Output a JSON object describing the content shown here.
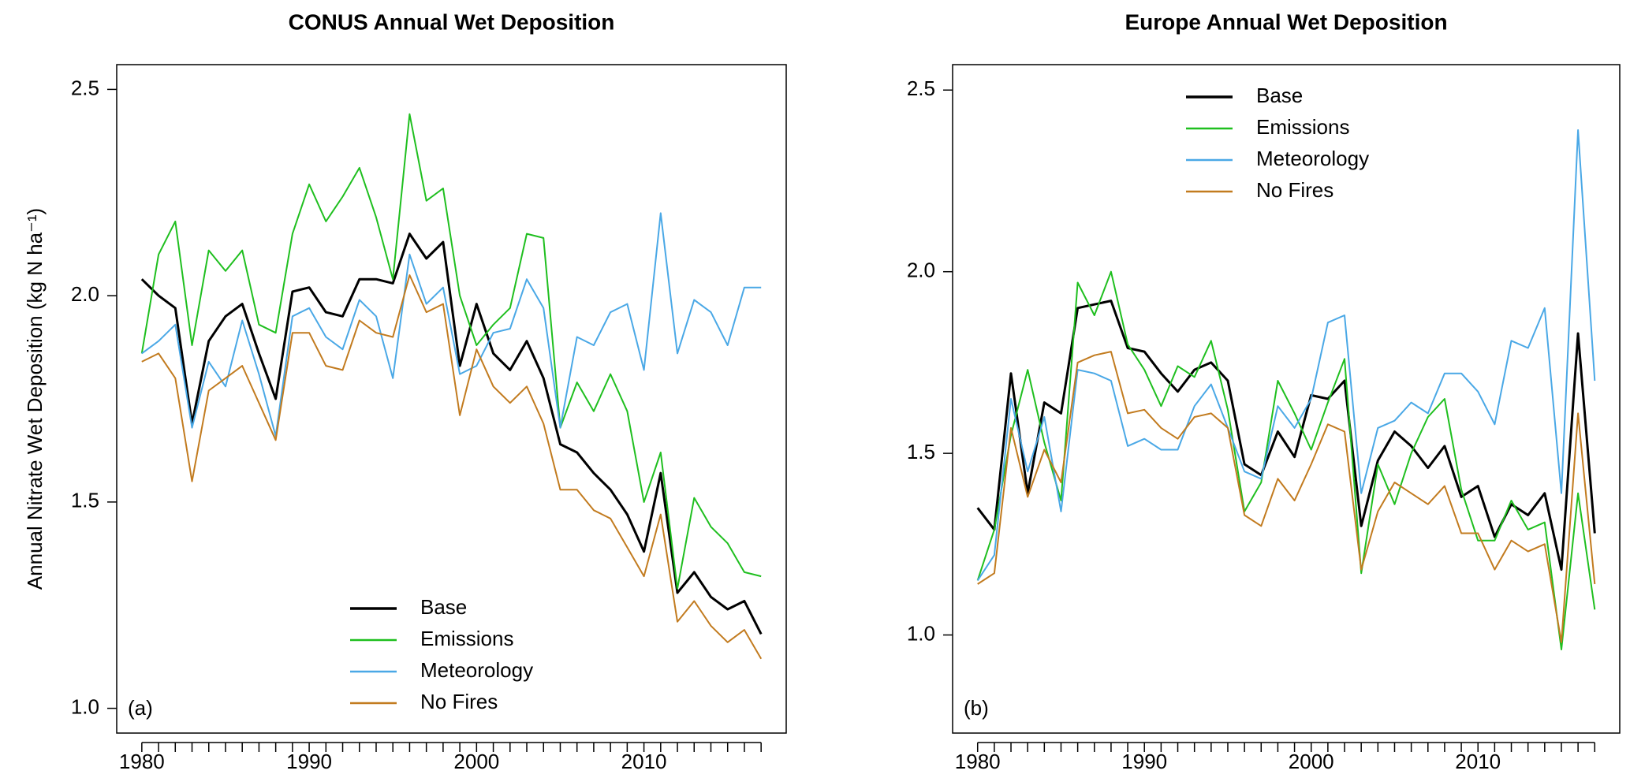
{
  "chart_data": [
    {
      "type": "line",
      "title": "CONUS Annual Wet Deposition",
      "y_label": "Annual Nitrate Wet Deposition (kg N ha⁻¹)",
      "annotation": "(a)",
      "legend": "bottom",
      "x": [
        1980,
        1981,
        1982,
        1983,
        1984,
        1985,
        1986,
        1987,
        1988,
        1989,
        1990,
        1991,
        1992,
        1993,
        1994,
        1995,
        1996,
        1997,
        1998,
        1999,
        2000,
        2001,
        2002,
        2003,
        2004,
        2005,
        2006,
        2007,
        2008,
        2009,
        2010,
        2011,
        2012,
        2013,
        2014,
        2015,
        2016,
        2017
      ],
      "xlim": [
        1978.5,
        2018.5
      ],
      "xticks": [
        1980,
        1990,
        2000,
        2010
      ],
      "ylim": [
        0.94,
        2.56
      ],
      "yticks": [
        {
          "value": 1,
          "label": "1.0"
        },
        1.5,
        {
          "value": 2,
          "label": "2.0"
        },
        2.5
      ],
      "series": [
        {
          "name": "Base",
          "color": "#000000",
          "width": 3,
          "values": [
            2.04,
            2.0,
            1.97,
            1.69,
            1.89,
            1.95,
            1.98,
            1.86,
            1.75,
            2.01,
            2.02,
            1.96,
            1.95,
            2.04,
            2.04,
            2.03,
            2.15,
            2.09,
            2.13,
            1.83,
            1.98,
            1.86,
            1.82,
            1.89,
            1.8,
            1.64,
            1.62,
            1.57,
            1.53,
            1.47,
            1.38,
            1.57,
            1.28,
            1.33,
            1.27,
            1.24,
            1.26,
            1.18
          ]
        },
        {
          "name": "Emissions",
          "color": "#1fbf1f",
          "width": 2,
          "values": [
            1.86,
            2.1,
            2.18,
            1.88,
            2.11,
            2.06,
            2.11,
            1.93,
            1.91,
            2.15,
            2.27,
            2.18,
            2.24,
            2.31,
            2.19,
            2.04,
            2.44,
            2.23,
            2.26,
            2.0,
            1.88,
            1.93,
            1.97,
            2.15,
            2.14,
            1.68,
            1.79,
            1.72,
            1.81,
            1.72,
            1.5,
            1.62,
            1.29,
            1.51,
            1.44,
            1.4,
            1.33,
            1.32
          ]
        },
        {
          "name": "Meteorology",
          "color": "#4aa8e6",
          "width": 2,
          "values": [
            1.86,
            1.89,
            1.93,
            1.68,
            1.84,
            1.78,
            1.94,
            1.81,
            1.66,
            1.95,
            1.97,
            1.9,
            1.87,
            1.99,
            1.95,
            1.8,
            2.1,
            1.98,
            2.02,
            1.81,
            1.83,
            1.91,
            1.92,
            2.04,
            1.97,
            1.68,
            1.9,
            1.88,
            1.96,
            1.98,
            1.82,
            2.2,
            1.86,
            1.99,
            1.96,
            1.88,
            2.02,
            2.02
          ]
        },
        {
          "name": "No Fires",
          "color": "#c27b1f",
          "width": 2,
          "values": [
            1.84,
            1.86,
            1.8,
            1.55,
            1.77,
            1.8,
            1.83,
            1.74,
            1.65,
            1.91,
            1.91,
            1.83,
            1.82,
            1.94,
            1.91,
            1.9,
            2.05,
            1.96,
            1.98,
            1.71,
            1.87,
            1.78,
            1.74,
            1.78,
            1.69,
            1.53,
            1.53,
            1.48,
            1.46,
            1.39,
            1.32,
            1.47,
            1.21,
            1.26,
            1.2,
            1.16,
            1.19,
            1.12
          ]
        }
      ]
    },
    {
      "type": "line",
      "title": "Europe Annual Wet Deposition",
      "annotation": "(b)",
      "legend": "top",
      "x": [
        1980,
        1981,
        1982,
        1983,
        1984,
        1985,
        1986,
        1987,
        1988,
        1989,
        1990,
        1991,
        1992,
        1993,
        1994,
        1995,
        1996,
        1997,
        1998,
        1999,
        2000,
        2001,
        2002,
        2003,
        2004,
        2005,
        2006,
        2007,
        2008,
        2009,
        2010,
        2011,
        2012,
        2013,
        2014,
        2015,
        2016,
        2017
      ],
      "xlim": [
        1978.5,
        2018.5
      ],
      "xticks": [
        1980,
        1990,
        2000,
        2010
      ],
      "ylim": [
        0.73,
        2.57
      ],
      "yticks": [
        {
          "value": 1,
          "label": "1.0"
        },
        1.5,
        {
          "value": 2,
          "label": "2.0"
        },
        2.5
      ],
      "series": [
        {
          "name": "Base",
          "color": "#000000",
          "width": 3,
          "values": [
            1.35,
            1.29,
            1.72,
            1.39,
            1.64,
            1.61,
            1.9,
            1.91,
            1.92,
            1.79,
            1.78,
            1.72,
            1.67,
            1.73,
            1.75,
            1.7,
            1.47,
            1.44,
            1.56,
            1.49,
            1.66,
            1.65,
            1.7,
            1.3,
            1.48,
            1.56,
            1.52,
            1.46,
            1.52,
            1.38,
            1.41,
            1.27,
            1.36,
            1.33,
            1.39,
            1.18,
            1.83,
            1.28
          ]
        },
        {
          "name": "Emissions",
          "color": "#1fbf1f",
          "width": 2,
          "values": [
            1.15,
            1.29,
            1.55,
            1.73,
            1.53,
            1.37,
            1.97,
            1.88,
            2.0,
            1.8,
            1.73,
            1.63,
            1.74,
            1.71,
            1.81,
            1.62,
            1.34,
            1.42,
            1.7,
            1.61,
            1.51,
            1.64,
            1.76,
            1.17,
            1.47,
            1.36,
            1.5,
            1.6,
            1.65,
            1.4,
            1.26,
            1.26,
            1.37,
            1.29,
            1.31,
            0.96,
            1.39,
            1.07
          ]
        },
        {
          "name": "Meteorology",
          "color": "#4aa8e6",
          "width": 2,
          "values": [
            1.15,
            1.22,
            1.65,
            1.45,
            1.6,
            1.34,
            1.73,
            1.72,
            1.7,
            1.52,
            1.54,
            1.51,
            1.51,
            1.63,
            1.69,
            1.57,
            1.45,
            1.43,
            1.63,
            1.57,
            1.65,
            1.86,
            1.88,
            1.39,
            1.57,
            1.59,
            1.64,
            1.61,
            1.72,
            1.72,
            1.67,
            1.58,
            1.81,
            1.79,
            1.9,
            1.39,
            2.39,
            1.7
          ]
        },
        {
          "name": "No Fires",
          "color": "#c27b1f",
          "width": 2,
          "values": [
            1.14,
            1.17,
            1.57,
            1.38,
            1.51,
            1.42,
            1.75,
            1.77,
            1.78,
            1.61,
            1.62,
            1.57,
            1.54,
            1.6,
            1.61,
            1.57,
            1.33,
            1.3,
            1.43,
            1.37,
            1.47,
            1.58,
            1.56,
            1.18,
            1.34,
            1.42,
            1.39,
            1.36,
            1.41,
            1.28,
            1.28,
            1.18,
            1.26,
            1.23,
            1.25,
            0.98,
            1.61,
            1.14
          ]
        }
      ]
    }
  ]
}
